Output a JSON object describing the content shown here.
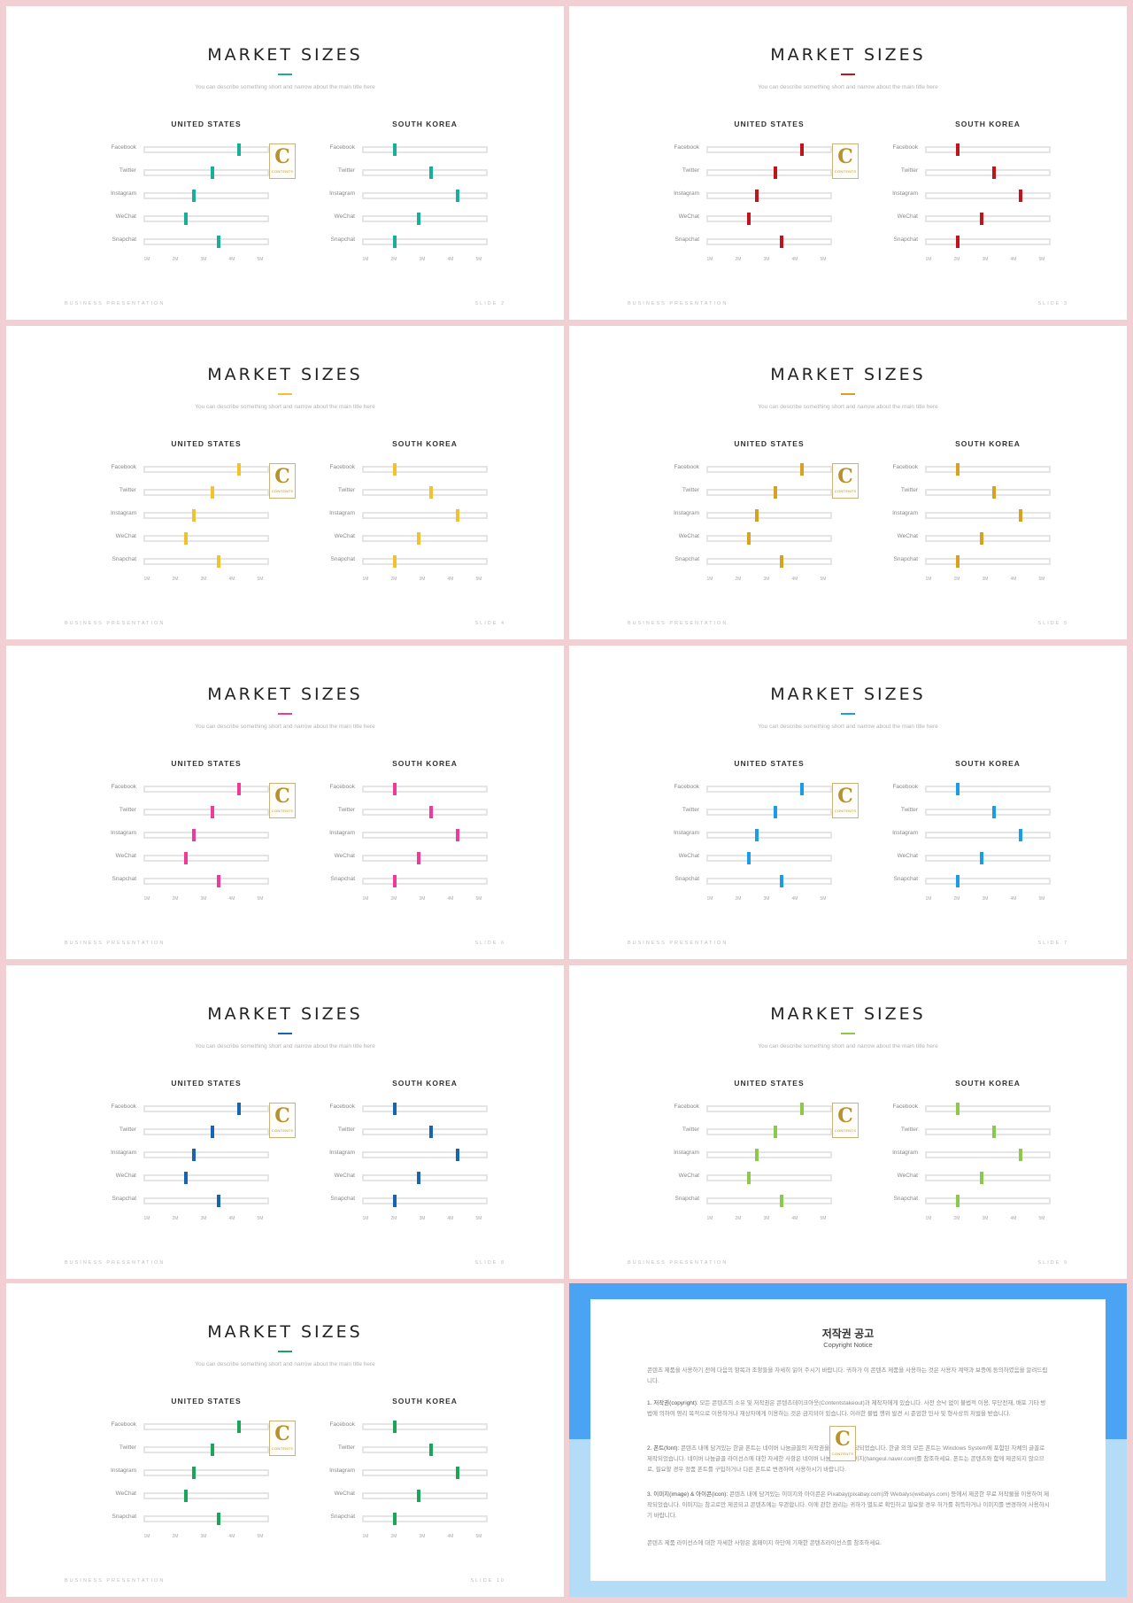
{
  "slide_common": {
    "title": "MARKET SIZES",
    "subtitle": "You can describe something short and narrow about the main title here",
    "panels": [
      {
        "title": "UNITED STATES",
        "positions": [
          0.77,
          0.55,
          0.4,
          0.33,
          0.6
        ]
      },
      {
        "title": "SOUTH KOREA",
        "positions": [
          0.25,
          0.55,
          0.77,
          0.45,
          0.25
        ]
      }
    ],
    "rows": [
      "Facebook",
      "Twitter",
      "Instagram",
      "WeChat",
      "Snapchat"
    ],
    "ticks": [
      "1M",
      "2M",
      "3M",
      "4M",
      "5M"
    ],
    "footer_left": "BUSINESS PRESENTATION",
    "logo_letter": "C",
    "logo_word": "CONTENTS"
  },
  "slides": [
    {
      "footer_right": "SLIDE 2",
      "accent": "#1aae98"
    },
    {
      "footer_right": "SLIDE 3",
      "accent": "#c0141c"
    },
    {
      "footer_right": "SLIDE 4",
      "accent": "#f2c12e"
    },
    {
      "footer_right": "SLIDE 5",
      "accent": "#d9a21e"
    },
    {
      "footer_right": "SLIDE 6",
      "accent": "#ee3a99"
    },
    {
      "footer_right": "SLIDE 7",
      "accent": "#1c9ce6"
    },
    {
      "footer_right": "SLIDE 8",
      "accent": "#1764b0"
    },
    {
      "footer_right": "SLIDE 9",
      "accent": "#8cc84b"
    },
    {
      "footer_right": "SLIDE 10",
      "accent": "#1aa55a"
    }
  ],
  "copyright": {
    "title": "저작권 공고",
    "subtitle": "Copyright Notice",
    "intro": "콘텐츠 제품을 사용하기 전에 다음의 항목과 조항들을 자세히 읽어 주시기 바랍니다. 귀하가 이 콘텐츠 제품을 사용하는 것은 사용자 계약과 보증에 동의하였음을 알려드립니다.",
    "p1_head": "1. 저작권(copyright):",
    "p1": "모든 콘텐츠의 소유 및 저작권은 콘텐츠테이크아웃(Contentstakeout)과 제작자에게 있습니다. 사전 승낙 없이 불법적 이용, 무단전재, 배포 기타 방법에 의하여 영리 목적으로 이용하거나 재상자에게 이용하는 것은 금지되어 있습니다. 이러한 불법 행위 발견 시 준엄한 민사 및 형사상의 처벌을 받습니다.",
    "p2_head": "2. 폰트(font):",
    "p2": "콘텐츠 내에 담겨있는 한글 폰트는 네이버 나눔글꼴의 저작권을 따르며 제작되었습니다. 한글 외의 모든 폰트는 Windows System에 포함된 자체의 글꼴로 제작되었습니다. 네이버 나눔글꼴 라이선스에 대한 자세한 사항은 네이버 나눔글꼴 홈페이지(hangeul.naver.com)를 참조하세요. 폰트는 콘텐츠와 함께 제공되지 않으므로, 필요할 경우 정품 폰트를 구입하거나 다른 폰트로 변경하여 사용하시기 바랍니다.",
    "p3_head": "3. 이미지(image) & 아이콘(icon):",
    "p3": "콘텐츠 내에 담겨있는 이미지와 아이콘은 Pixabay(pixabay.com)와 Webalys(webalys.com) 등에서 제공한 무료 저작물을 이용하여 제작되었습니다. 이미지는 참고로만 제공되고 콘텐츠에는 무관합니다. 이에 관한 권리는 귀하가 별도로 확인하고 필요할 경우 허가를 취득하거나 이미지를 변경하여 사용하시기 바랍니다.",
    "outro": "콘텐츠 제품 라이선스에 대한 자세한 사항은 홈페이지 하단에 기재한 콘텐츠라이선스를 참조하세요."
  }
}
